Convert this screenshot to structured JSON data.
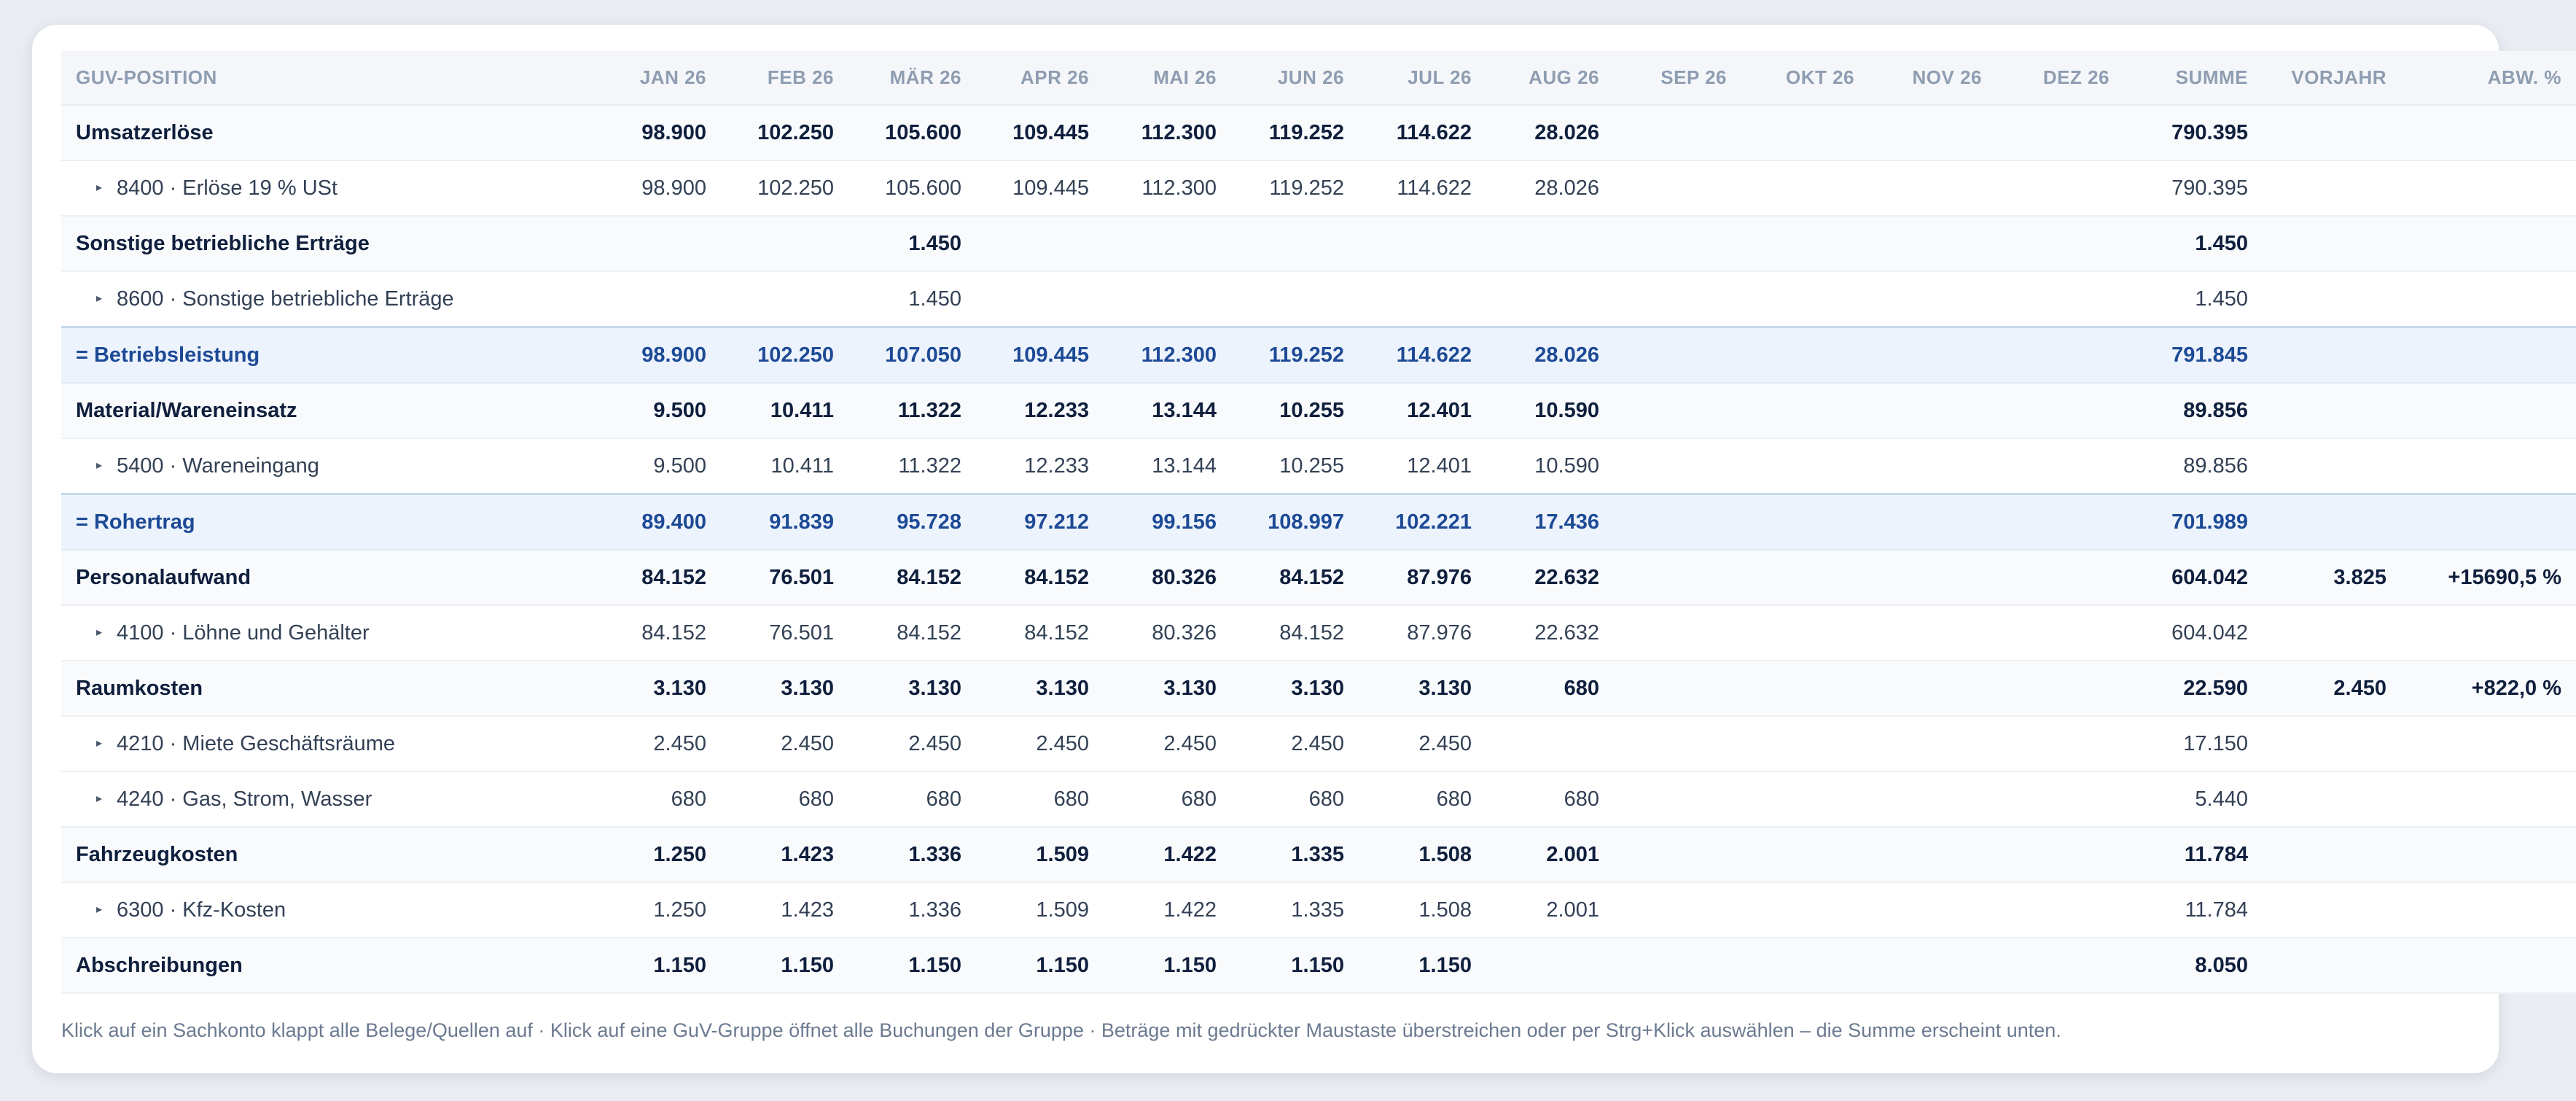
{
  "columns": [
    "GUV-POSITION",
    "JAN 26",
    "FEB 26",
    "MÄR 26",
    "APR 26",
    "MAI 26",
    "JUN 26",
    "JUL 26",
    "AUG 26",
    "SEP 26",
    "OKT 26",
    "NOV 26",
    "DEZ 26",
    "SUMME",
    "VORJAHR",
    "ABW. %"
  ],
  "rows": [
    {
      "type": "group",
      "label": "Umsatzerlöse",
      "values": [
        "98.900",
        "102.250",
        "105.600",
        "109.445",
        "112.300",
        "119.252",
        "114.622",
        "28.026",
        "",
        "",
        "",
        "",
        "790.395",
        "",
        ""
      ]
    },
    {
      "type": "acct",
      "label": "8400 · Erlöse 19 % USt",
      "values": [
        "98.900",
        "102.250",
        "105.600",
        "109.445",
        "112.300",
        "119.252",
        "114.622",
        "28.026",
        "",
        "",
        "",
        "",
        "790.395",
        "",
        ""
      ]
    },
    {
      "type": "group",
      "label": "Sonstige betriebliche Erträge",
      "values": [
        "",
        "",
        "1.450",
        "",
        "",
        "",
        "",
        "",
        "",
        "",
        "",
        "",
        "1.450",
        "",
        ""
      ]
    },
    {
      "type": "acct",
      "label": "8600 · Sonstige betriebliche Erträge",
      "values": [
        "",
        "",
        "1.450",
        "",
        "",
        "",
        "",
        "",
        "",
        "",
        "",
        "",
        "1.450",
        "",
        ""
      ]
    },
    {
      "type": "total",
      "label": "= Betriebsleistung",
      "values": [
        "98.900",
        "102.250",
        "107.050",
        "109.445",
        "112.300",
        "119.252",
        "114.622",
        "28.026",
        "",
        "",
        "",
        "",
        "791.845",
        "",
        ""
      ]
    },
    {
      "type": "group",
      "label": "Material/Wareneinsatz",
      "values": [
        "9.500",
        "10.411",
        "11.322",
        "12.233",
        "13.144",
        "10.255",
        "12.401",
        "10.590",
        "",
        "",
        "",
        "",
        "89.856",
        "",
        ""
      ]
    },
    {
      "type": "acct",
      "label": "5400 · Wareneingang",
      "values": [
        "9.500",
        "10.411",
        "11.322",
        "12.233",
        "13.144",
        "10.255",
        "12.401",
        "10.590",
        "",
        "",
        "",
        "",
        "89.856",
        "",
        ""
      ]
    },
    {
      "type": "total",
      "label": "= Rohertrag",
      "values": [
        "89.400",
        "91.839",
        "95.728",
        "97.212",
        "99.156",
        "108.997",
        "102.221",
        "17.436",
        "",
        "",
        "",
        "",
        "701.989",
        "",
        ""
      ]
    },
    {
      "type": "group",
      "label": "Personalaufwand",
      "values": [
        "84.152",
        "76.501",
        "84.152",
        "84.152",
        "80.326",
        "84.152",
        "87.976",
        "22.632",
        "",
        "",
        "",
        "",
        "604.042",
        "3.825",
        "+15690,5 %"
      ]
    },
    {
      "type": "acct",
      "label": "4100 · Löhne und Gehälter",
      "values": [
        "84.152",
        "76.501",
        "84.152",
        "84.152",
        "80.326",
        "84.152",
        "87.976",
        "22.632",
        "",
        "",
        "",
        "",
        "604.042",
        "",
        ""
      ]
    },
    {
      "type": "group",
      "label": "Raumkosten",
      "values": [
        "3.130",
        "3.130",
        "3.130",
        "3.130",
        "3.130",
        "3.130",
        "3.130",
        "680",
        "",
        "",
        "",
        "",
        "22.590",
        "2.450",
        "+822,0 %"
      ]
    },
    {
      "type": "acct",
      "label": "4210 · Miete Geschäftsräume",
      "values": [
        "2.450",
        "2.450",
        "2.450",
        "2.450",
        "2.450",
        "2.450",
        "2.450",
        "",
        "",
        "",
        "",
        "",
        "17.150",
        "",
        ""
      ]
    },
    {
      "type": "acct",
      "label": "4240 · Gas, Strom, Wasser",
      "values": [
        "680",
        "680",
        "680",
        "680",
        "680",
        "680",
        "680",
        "680",
        "",
        "",
        "",
        "",
        "5.440",
        "",
        ""
      ]
    },
    {
      "type": "group",
      "label": "Fahrzeugkosten",
      "values": [
        "1.250",
        "1.423",
        "1.336",
        "1.509",
        "1.422",
        "1.335",
        "1.508",
        "2.001",
        "",
        "",
        "",
        "",
        "11.784",
        "",
        ""
      ]
    },
    {
      "type": "acct",
      "label": "6300 · Kfz-Kosten",
      "values": [
        "1.250",
        "1.423",
        "1.336",
        "1.509",
        "1.422",
        "1.335",
        "1.508",
        "2.001",
        "",
        "",
        "",
        "",
        "11.784",
        "",
        ""
      ]
    },
    {
      "type": "group",
      "label": "Abschreibungen",
      "values": [
        "1.150",
        "1.150",
        "1.150",
        "1.150",
        "1.150",
        "1.150",
        "1.150",
        "",
        "",
        "",
        "",
        "",
        "8.050",
        "",
        ""
      ]
    }
  ],
  "icons": {
    "expand": "triangle-right-icon"
  },
  "footer": {
    "hint": "Klick auf ein Sachkonto klappt alle Belege/Quellen auf · Klick auf eine GuV-Gruppe öffnet alle Buchungen der Gruppe · Beträge mit gedrückter Maustaste überstreichen oder per Strg+Klick auswählen – die Summe erscheint unten."
  },
  "colors": {
    "background": "#e9ecf2",
    "card": "#ffffff",
    "group_text": "#0f1f3d",
    "total_text": "#1d4a96",
    "total_bg": "#edf3fc",
    "header_text": "#8e9db1"
  }
}
